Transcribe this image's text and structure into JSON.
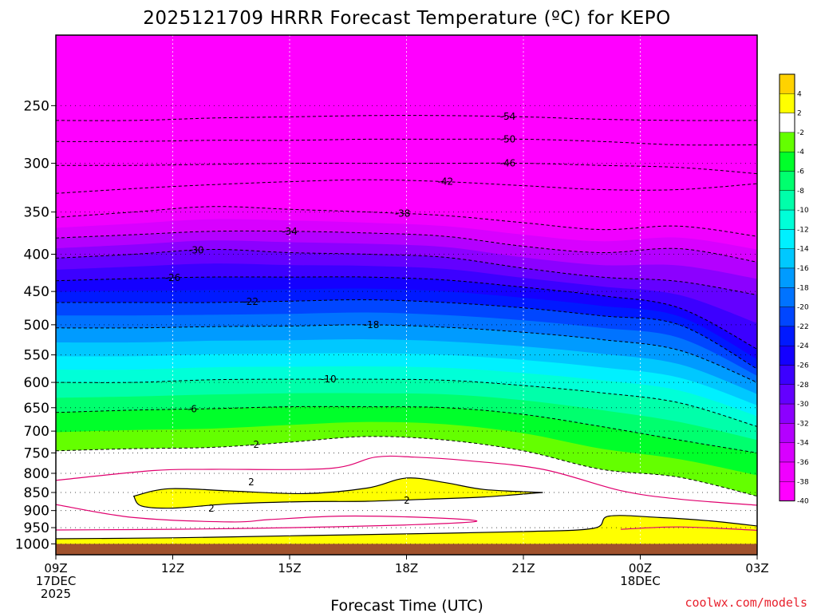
{
  "chart_data": {
    "type": "heatmap",
    "title": "2025121709 HRRR Forecast Temperature (ºC) for KEPO",
    "xlabel": "Forecast Time (UTC)",
    "ylabel": "",
    "x_ticks": [
      {
        "hours": 0,
        "lines": [
          "09Z",
          "17DEC",
          "2025"
        ]
      },
      {
        "hours": 3,
        "lines": [
          "12Z"
        ]
      },
      {
        "hours": 6,
        "lines": [
          "15Z"
        ]
      },
      {
        "hours": 9,
        "lines": [
          "18Z"
        ]
      },
      {
        "hours": 12,
        "lines": [
          "21Z"
        ]
      },
      {
        "hours": 15,
        "lines": [
          "00Z",
          "18DEC"
        ]
      },
      {
        "hours": 18,
        "lines": [
          "03Z"
        ]
      }
    ],
    "xlim": [
      0,
      18
    ],
    "y_scale": "log",
    "ylim": [
      1035,
      200
    ],
    "y_ticks": [
      250,
      300,
      350,
      400,
      450,
      500,
      550,
      600,
      650,
      700,
      750,
      800,
      850,
      900,
      950,
      1000
    ],
    "ground_pressure": 1000,
    "colorbar": {
      "labels": [
        "4",
        "2",
        "-2",
        "-4",
        "-6",
        "-8",
        "-10",
        "-12",
        "-14",
        "-16",
        "-18",
        "-20",
        "-22",
        "-24",
        "-26",
        "-28",
        "-30",
        "-32",
        "-34",
        "-36",
        "-38",
        "-40"
      ],
      "colors": [
        "#ffd200",
        "#ffff00",
        "#ffffff",
        "#64ff00",
        "#00ff2a",
        "#00ff6e",
        "#00ffaa",
        "#00ffd8",
        "#00f0ff",
        "#00c8ff",
        "#009bff",
        "#0073ff",
        "#0046ff",
        "#0019ff",
        "#1400ff",
        "#3c00ff",
        "#6400ff",
        "#8c00ff",
        "#b400ff",
        "#d800ff",
        "#f000ff",
        "#ff00ff"
      ]
    },
    "isotherms": [
      {
        "label": "-54",
        "at_hours": 11.6,
        "pressure": [
          262,
          262,
          260,
          259,
          258,
          258,
          259,
          261,
          262,
          262
        ]
      },
      {
        "label": "-50",
        "at_hours": 11.6,
        "pressure": [
          280,
          280,
          279,
          279,
          278,
          278,
          278,
          280,
          283,
          283
        ]
      },
      {
        "label": "-46",
        "at_hours": 11.6,
        "pressure": [
          302,
          302,
          301,
          300,
          300,
          300,
          300,
          302,
          304,
          310
        ]
      },
      {
        "label": "-42",
        "at_hours": 10.0,
        "pressure": [
          330,
          325,
          321,
          318,
          316,
          318,
          322,
          326,
          326,
          320
        ]
      },
      {
        "label": "-38",
        "at_hours": 8.9,
        "pressure": [
          356,
          350,
          344,
          347,
          350,
          354,
          362,
          370,
          366,
          378
        ]
      },
      {
        "label": "-34",
        "at_hours": 6.0,
        "pressure": [
          380,
          376,
          372,
          372,
          374,
          378,
          390,
          398,
          393,
          410
        ]
      },
      {
        "label": "-30",
        "at_hours": 3.6,
        "pressure": [
          405,
          400,
          394,
          398,
          400,
          404,
          418,
          430,
          436,
          455
        ]
      },
      {
        "label": "-26",
        "at_hours": 3.0,
        "pressure": [
          435,
          432,
          430,
          430,
          430,
          434,
          444,
          456,
          474,
          540
        ]
      },
      {
        "label": "-22",
        "at_hours": 5.0,
        "pressure": [
          466,
          466,
          466,
          464,
          462,
          466,
          474,
          486,
          500,
          575
        ]
      },
      {
        "label": "-18",
        "at_hours": 8.1,
        "pressure": [
          505,
          505,
          503,
          502,
          500,
          504,
          512,
          524,
          542,
          600
        ]
      },
      {
        "label": "-10",
        "at_hours": 7.0,
        "pressure": [
          600,
          600,
          595,
          594,
          594,
          596,
          606,
          620,
          640,
          690
        ]
      },
      {
        "label": "-6",
        "at_hours": 3.5,
        "pressure": [
          660,
          655,
          652,
          648,
          648,
          650,
          664,
          690,
          720,
          750
        ]
      },
      {
        "label": "-2",
        "at_hours": 5.1,
        "pressure": [
          745,
          740,
          737,
          725,
          712,
          720,
          745,
          790,
          810,
          860
        ]
      }
    ],
    "labels_2": [
      "2",
      "2",
      "2"
    ]
  },
  "credit": "coolwx.com/models"
}
